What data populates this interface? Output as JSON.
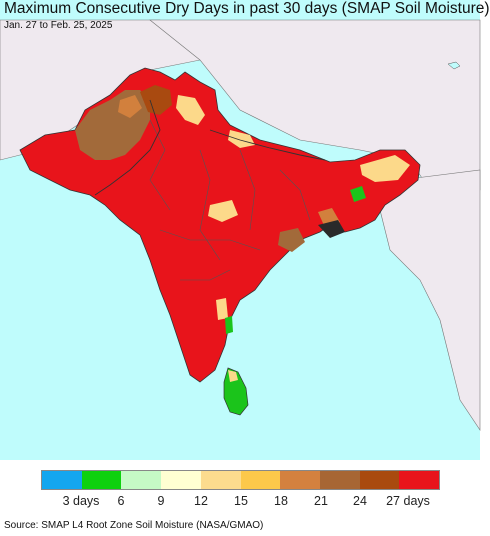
{
  "title": "Maximum Consecutive Dry Days in past 30 days (SMAP Soil Moisture)",
  "subtitle": "Jan. 27 to Feb. 25, 2025",
  "source": "Source: SMAP L4 Root Zone Soil Moisture (NASA/GMAO)",
  "colors": {
    "ocean": "#bffcfc",
    "land_outside": "#efe9ef",
    "dry_red": "#e8141b",
    "brown": "#a26a3a",
    "dark_brown": "#a94a10",
    "orange": "#d2803d",
    "light_orange": "#fcd98a",
    "green": "#1bc41b",
    "border": "#555555"
  },
  "legend": {
    "colors": [
      "#13a6ef",
      "#0ed10e",
      "#c6fac6",
      "#ffffd2",
      "#fcdc8e",
      "#fcc84a",
      "#d4813f",
      "#a76634",
      "#a94a0f",
      "#e8141b"
    ],
    "labels": [
      "3 days",
      "6",
      "9",
      "12",
      "15",
      "18",
      "21",
      "24",
      "27 days"
    ]
  }
}
